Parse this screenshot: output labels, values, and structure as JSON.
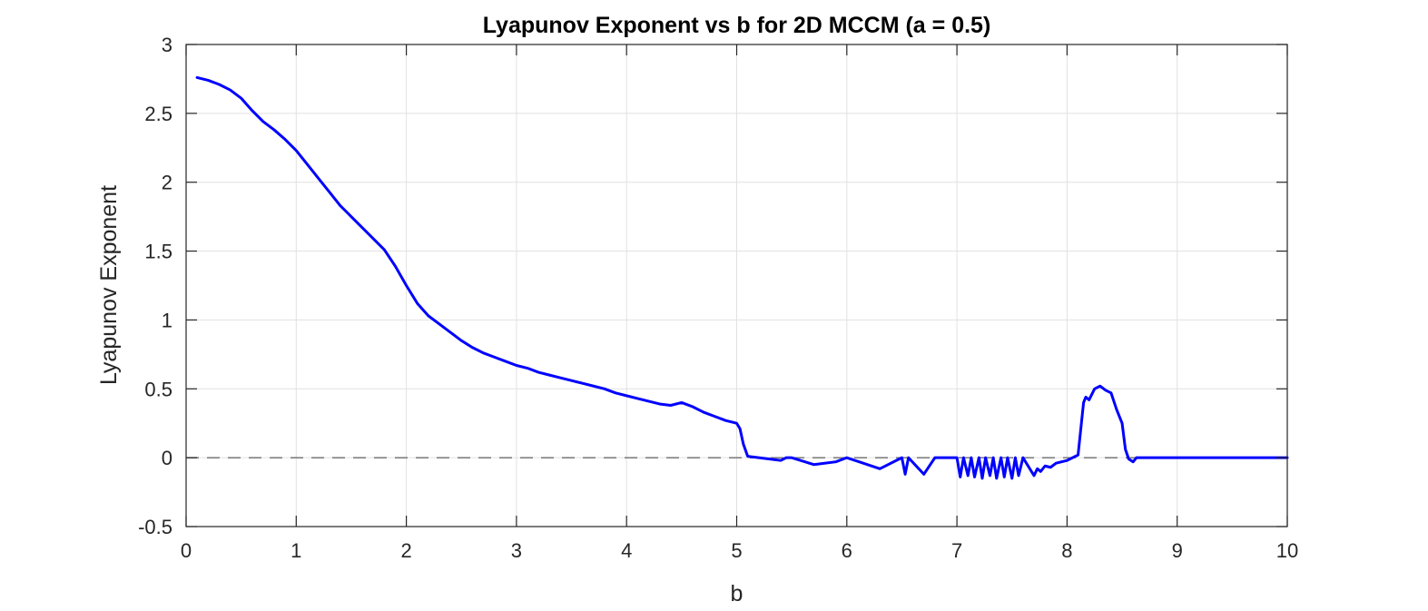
{
  "chart_data": {
    "type": "line",
    "title": "Lyapunov Exponent vs b for 2D MCCM (a = 0.5)",
    "xlabel": "b",
    "ylabel": "Lyapunov Exponent",
    "xlim": [
      0,
      10
    ],
    "ylim": [
      -0.5,
      3
    ],
    "xticks": [
      0,
      1,
      2,
      3,
      4,
      5,
      6,
      7,
      8,
      9,
      10
    ],
    "xtick_labels": [
      "0",
      "1",
      "2",
      "3",
      "4",
      "5",
      "6",
      "7",
      "8",
      "9",
      "10"
    ],
    "yticks": [
      -0.5,
      0,
      0.5,
      1,
      1.5,
      2,
      2.5,
      3
    ],
    "ytick_labels": [
      "-0.5",
      "0",
      "0.5",
      "1",
      "1.5",
      "2",
      "2.5",
      "3"
    ],
    "grid": true,
    "reference_line": {
      "y": 0,
      "style": "dashed",
      "color": "#808080"
    },
    "series": [
      {
        "color": "#0000ff",
        "x": [
          0.1,
          0.2,
          0.3,
          0.4,
          0.5,
          0.6,
          0.7,
          0.8,
          0.9,
          1.0,
          1.1,
          1.2,
          1.3,
          1.4,
          1.5,
          1.6,
          1.7,
          1.8,
          1.9,
          2.0,
          2.1,
          2.2,
          2.3,
          2.4,
          2.5,
          2.6,
          2.7,
          2.8,
          2.9,
          3.0,
          3.1,
          3.2,
          3.3,
          3.4,
          3.5,
          3.6,
          3.7,
          3.8,
          3.9,
          4.0,
          4.1,
          4.2,
          4.3,
          4.4,
          4.5,
          4.6,
          4.7,
          4.8,
          4.9,
          5.0,
          5.03,
          5.06,
          5.1,
          5.2,
          5.3,
          5.4,
          5.45,
          5.5,
          5.7,
          5.9,
          6.0,
          6.3,
          6.5,
          6.53,
          6.56,
          6.7,
          6.8,
          7.0,
          7.03,
          7.06,
          7.1,
          7.13,
          7.16,
          7.2,
          7.23,
          7.26,
          7.3,
          7.33,
          7.36,
          7.4,
          7.43,
          7.46,
          7.5,
          7.53,
          7.56,
          7.6,
          7.7,
          7.73,
          7.76,
          7.8,
          7.85,
          7.9,
          7.95,
          8.0,
          8.1,
          8.15,
          8.17,
          8.2,
          8.25,
          8.3,
          8.35,
          8.4,
          8.45,
          8.5,
          8.53,
          8.56,
          8.6,
          8.63,
          8.65,
          9.0,
          9.5,
          10.0
        ],
        "y": [
          2.76,
          2.74,
          2.71,
          2.67,
          2.61,
          2.52,
          2.44,
          2.38,
          2.31,
          2.23,
          2.13,
          2.03,
          1.93,
          1.83,
          1.75,
          1.67,
          1.59,
          1.51,
          1.39,
          1.25,
          1.12,
          1.03,
          0.97,
          0.91,
          0.85,
          0.8,
          0.76,
          0.73,
          0.7,
          0.67,
          0.65,
          0.62,
          0.6,
          0.58,
          0.56,
          0.54,
          0.52,
          0.5,
          0.47,
          0.45,
          0.43,
          0.41,
          0.39,
          0.38,
          0.4,
          0.37,
          0.33,
          0.3,
          0.27,
          0.25,
          0.21,
          0.1,
          0.01,
          0.0,
          -0.01,
          -0.02,
          0.0,
          0.0,
          -0.05,
          -0.03,
          0.0,
          -0.08,
          0.0,
          -0.12,
          0.0,
          -0.12,
          0.0,
          0.0,
          -0.14,
          0.0,
          -0.13,
          0.0,
          -0.14,
          0.0,
          -0.15,
          0.0,
          -0.13,
          0.0,
          -0.15,
          0.0,
          -0.14,
          0.0,
          -0.15,
          0.0,
          -0.13,
          0.0,
          -0.13,
          -0.08,
          -0.1,
          -0.06,
          -0.07,
          -0.04,
          -0.03,
          -0.02,
          0.02,
          0.4,
          0.44,
          0.42,
          0.5,
          0.52,
          0.49,
          0.47,
          0.35,
          0.25,
          0.06,
          -0.01,
          -0.03,
          0.0,
          0.0,
          0.0,
          0.0,
          0.0
        ]
      }
    ]
  }
}
